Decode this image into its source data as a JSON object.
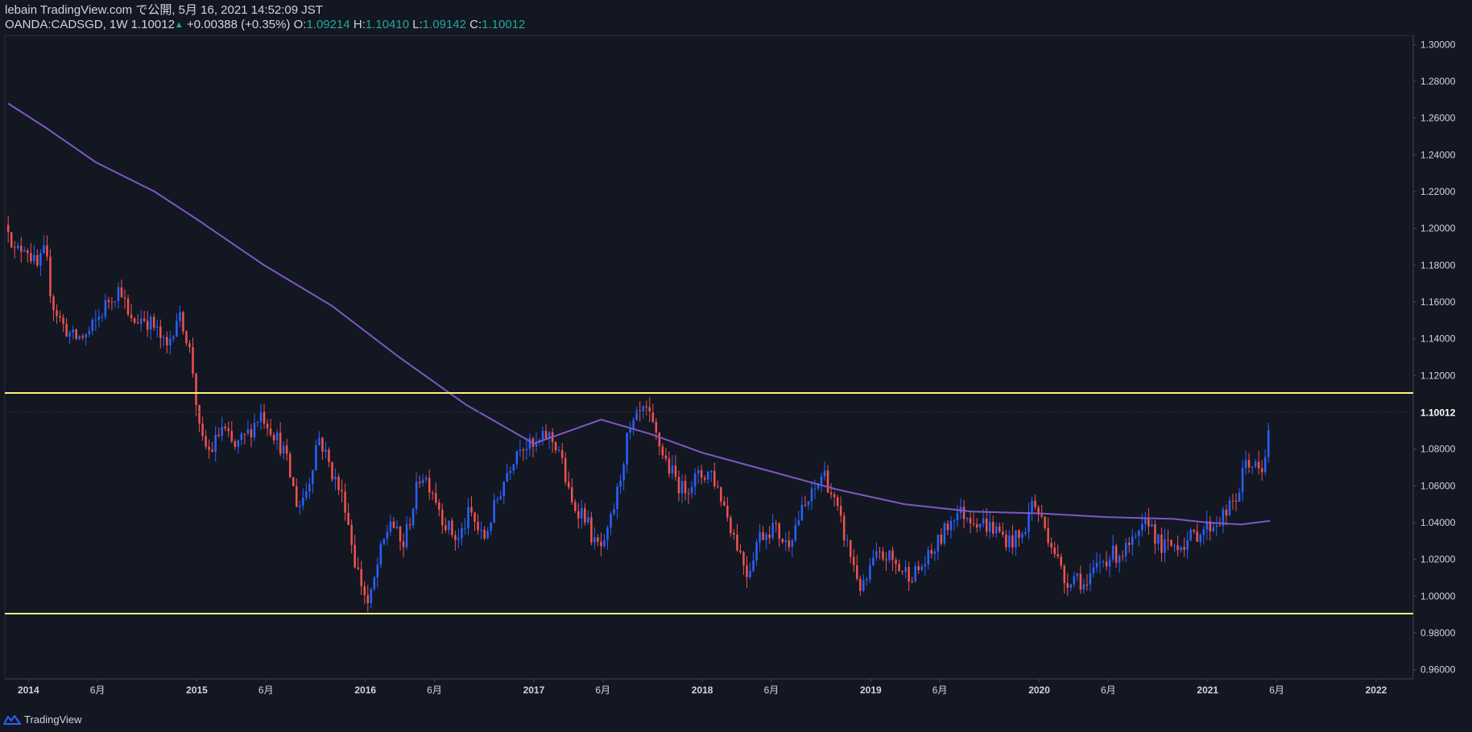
{
  "header": {
    "line1": "lebain TradingView.com で公開, 5月 16, 2021 14:52:09 JST",
    "symbol": "OANDA:CADSGD, 1W 1.10012",
    "change": "+0.00388 (+0.35%)",
    "o_label": "O:",
    "o_value": "1.09214",
    "h_label": "H:",
    "h_value": "1.10410",
    "l_label": "L:",
    "l_value": "1.09142",
    "c_label": "C:",
    "c_value": "1.10012"
  },
  "footer": {
    "brand": "TradingView",
    "icon": "tradingview-logo-icon"
  },
  "colors": {
    "background": "#131722",
    "up": "#2962ff",
    "down": "#ef5350",
    "ma": "#7e57c2",
    "level": "#fff176",
    "text": "#d1d4dc",
    "accent": "#26a69a"
  },
  "chart_data": {
    "type": "candlestick",
    "symbol": "OANDA:CADSGD",
    "timeframe": "1W",
    "ylim": [
      0.955,
      1.305
    ],
    "y_ticks": [
      "1.30000",
      "1.28000",
      "1.26000",
      "1.24000",
      "1.22000",
      "1.20000",
      "1.18000",
      "1.16000",
      "1.14000",
      "1.12000",
      "1.10000",
      "1.08000",
      "1.06000",
      "1.04000",
      "1.02000",
      "1.00000",
      "0.98000",
      "0.96000"
    ],
    "last_price": "1.10012",
    "x_ticks": [
      {
        "label": "2014",
        "t": 2014.0,
        "bold": true
      },
      {
        "label": "6月",
        "t": 2014.41
      },
      {
        "label": "2015",
        "t": 2015.0,
        "bold": true
      },
      {
        "label": "6月",
        "t": 2015.41
      },
      {
        "label": "2016",
        "t": 2016.0,
        "bold": true
      },
      {
        "label": "6月",
        "t": 2016.41
      },
      {
        "label": "2017",
        "t": 2017.0,
        "bold": true
      },
      {
        "label": "6月",
        "t": 2017.41
      },
      {
        "label": "2018",
        "t": 2018.0,
        "bold": true
      },
      {
        "label": "6月",
        "t": 2018.41
      },
      {
        "label": "2019",
        "t": 2019.0,
        "bold": true
      },
      {
        "label": "6月",
        "t": 2019.41
      },
      {
        "label": "2020",
        "t": 2020.0,
        "bold": true
      },
      {
        "label": "6月",
        "t": 2020.41
      },
      {
        "label": "2021",
        "t": 2021.0,
        "bold": true
      },
      {
        "label": "6月",
        "t": 2021.41
      },
      {
        "label": "2022",
        "t": 2022.0,
        "bold": true
      }
    ],
    "horizontal_levels": [
      1.1105,
      0.9905
    ],
    "price_path": [
      [
        2013.88,
        1.202
      ],
      [
        2013.92,
        1.186
      ],
      [
        2013.98,
        1.192
      ],
      [
        2014.05,
        1.178
      ],
      [
        2014.1,
        1.188
      ],
      [
        2014.14,
        1.16
      ],
      [
        2014.2,
        1.148
      ],
      [
        2014.27,
        1.14
      ],
      [
        2014.35,
        1.142
      ],
      [
        2014.42,
        1.152
      ],
      [
        2014.48,
        1.162
      ],
      [
        2014.55,
        1.168
      ],
      [
        2014.6,
        1.148
      ],
      [
        2014.68,
        1.152
      ],
      [
        2014.75,
        1.146
      ],
      [
        2014.82,
        1.134
      ],
      [
        2014.88,
        1.152
      ],
      [
        2014.92,
        1.148
      ],
      [
        2014.97,
        1.128
      ],
      [
        2015.02,
        1.085
      ],
      [
        2015.08,
        1.078
      ],
      [
        2015.15,
        1.092
      ],
      [
        2015.22,
        1.08
      ],
      [
        2015.3,
        1.088
      ],
      [
        2015.38,
        1.1
      ],
      [
        2015.45,
        1.09
      ],
      [
        2015.52,
        1.078
      ],
      [
        2015.6,
        1.048
      ],
      [
        2015.66,
        1.06
      ],
      [
        2015.72,
        1.088
      ],
      [
        2015.8,
        1.068
      ],
      [
        2015.88,
        1.05
      ],
      [
        2015.94,
        1.018
      ],
      [
        2016.02,
        0.994
      ],
      [
        2016.08,
        1.02
      ],
      [
        2016.15,
        1.042
      ],
      [
        2016.22,
        1.026
      ],
      [
        2016.28,
        1.048
      ],
      [
        2016.33,
        1.068
      ],
      [
        2016.4,
        1.058
      ],
      [
        2016.47,
        1.04
      ],
      [
        2016.55,
        1.03
      ],
      [
        2016.62,
        1.046
      ],
      [
        2016.7,
        1.03
      ],
      [
        2016.78,
        1.052
      ],
      [
        2016.85,
        1.07
      ],
      [
        2016.92,
        1.084
      ],
      [
        2017.0,
        1.08
      ],
      [
        2017.08,
        1.088
      ],
      [
        2017.15,
        1.08
      ],
      [
        2017.22,
        1.05
      ],
      [
        2017.3,
        1.045
      ],
      [
        2017.36,
        1.028
      ],
      [
        2017.42,
        1.026
      ],
      [
        2017.5,
        1.058
      ],
      [
        2017.55,
        1.084
      ],
      [
        2017.62,
        1.098
      ],
      [
        2017.67,
        1.1
      ],
      [
        2017.72,
        1.088
      ],
      [
        2017.8,
        1.07
      ],
      [
        2017.88,
        1.058
      ],
      [
        2017.96,
        1.064
      ],
      [
        2018.05,
        1.068
      ],
      [
        2018.12,
        1.052
      ],
      [
        2018.2,
        1.03
      ],
      [
        2018.27,
        1.012
      ],
      [
        2018.33,
        1.032
      ],
      [
        2018.42,
        1.038
      ],
      [
        2018.5,
        1.028
      ],
      [
        2018.58,
        1.044
      ],
      [
        2018.66,
        1.056
      ],
      [
        2018.72,
        1.068
      ],
      [
        2018.78,
        1.052
      ],
      [
        2018.86,
        1.028
      ],
      [
        2018.95,
        1.002
      ],
      [
        2019.02,
        1.02
      ],
      [
        2019.1,
        1.022
      ],
      [
        2019.18,
        1.014
      ],
      [
        2019.26,
        1.012
      ],
      [
        2019.34,
        1.02
      ],
      [
        2019.42,
        1.032
      ],
      [
        2019.5,
        1.046
      ],
      [
        2019.58,
        1.044
      ],
      [
        2019.66,
        1.04
      ],
      [
        2019.74,
        1.036
      ],
      [
        2019.82,
        1.03
      ],
      [
        2019.9,
        1.032
      ],
      [
        2019.96,
        1.052
      ],
      [
        2020.02,
        1.04
      ],
      [
        2020.08,
        1.028
      ],
      [
        2020.15,
        1.008
      ],
      [
        2020.22,
        1.012
      ],
      [
        2020.28,
        1.004
      ],
      [
        2020.35,
        1.018
      ],
      [
        2020.42,
        1.022
      ],
      [
        2020.5,
        1.024
      ],
      [
        2020.58,
        1.03
      ],
      [
        2020.65,
        1.042
      ],
      [
        2020.72,
        1.026
      ],
      [
        2020.8,
        1.028
      ],
      [
        2020.88,
        1.03
      ],
      [
        2020.96,
        1.036
      ],
      [
        2021.05,
        1.04
      ],
      [
        2021.12,
        1.046
      ],
      [
        2021.18,
        1.055
      ],
      [
        2021.23,
        1.075
      ],
      [
        2021.28,
        1.07
      ],
      [
        2021.33,
        1.065
      ],
      [
        2021.37,
        1.1
      ]
    ],
    "ma_path": [
      [
        2013.88,
        1.268
      ],
      [
        2014.1,
        1.255
      ],
      [
        2014.4,
        1.236
      ],
      [
        2014.75,
        1.22
      ],
      [
        2015.0,
        1.205
      ],
      [
        2015.4,
        1.18
      ],
      [
        2015.8,
        1.158
      ],
      [
        2016.2,
        1.13
      ],
      [
        2016.6,
        1.104
      ],
      [
        2017.0,
        1.083
      ],
      [
        2017.4,
        1.096
      ],
      [
        2017.7,
        1.088
      ],
      [
        2018.0,
        1.078
      ],
      [
        2018.4,
        1.068
      ],
      [
        2018.8,
        1.058
      ],
      [
        2019.2,
        1.05
      ],
      [
        2019.6,
        1.046
      ],
      [
        2020.0,
        1.045
      ],
      [
        2020.4,
        1.043
      ],
      [
        2020.8,
        1.042
      ],
      [
        2021.0,
        1.04
      ],
      [
        2021.2,
        1.039
      ],
      [
        2021.37,
        1.041
      ]
    ]
  }
}
